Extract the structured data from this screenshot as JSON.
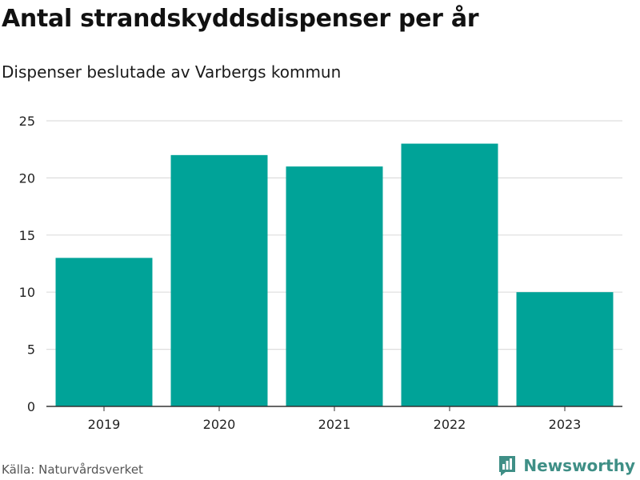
{
  "title": "Antal strandskyddsdispenser per år",
  "subtitle": "Dispenser beslutade av Varbergs kommun",
  "source": "Källa: Naturvårdsverket",
  "brand": {
    "name": "Newsworthy",
    "logo_icon": "newsworthy-logo-icon",
    "color": "#3f8f86"
  },
  "colors": {
    "bar": "#00a398",
    "grid": "#dddddd",
    "axis": "#333333"
  },
  "chart_data": {
    "type": "bar",
    "title": "Antal strandskyddsdispenser per år",
    "subtitle": "Dispenser beslutade av Varbergs kommun",
    "categories": [
      "2019",
      "2020",
      "2021",
      "2022",
      "2023"
    ],
    "values": [
      13,
      22,
      21,
      23,
      10
    ],
    "xlabel": "",
    "ylabel": "",
    "ylim": [
      0,
      25
    ],
    "yticks": [
      0,
      5,
      10,
      15,
      20,
      25
    ],
    "grid": true,
    "legend": "none"
  }
}
